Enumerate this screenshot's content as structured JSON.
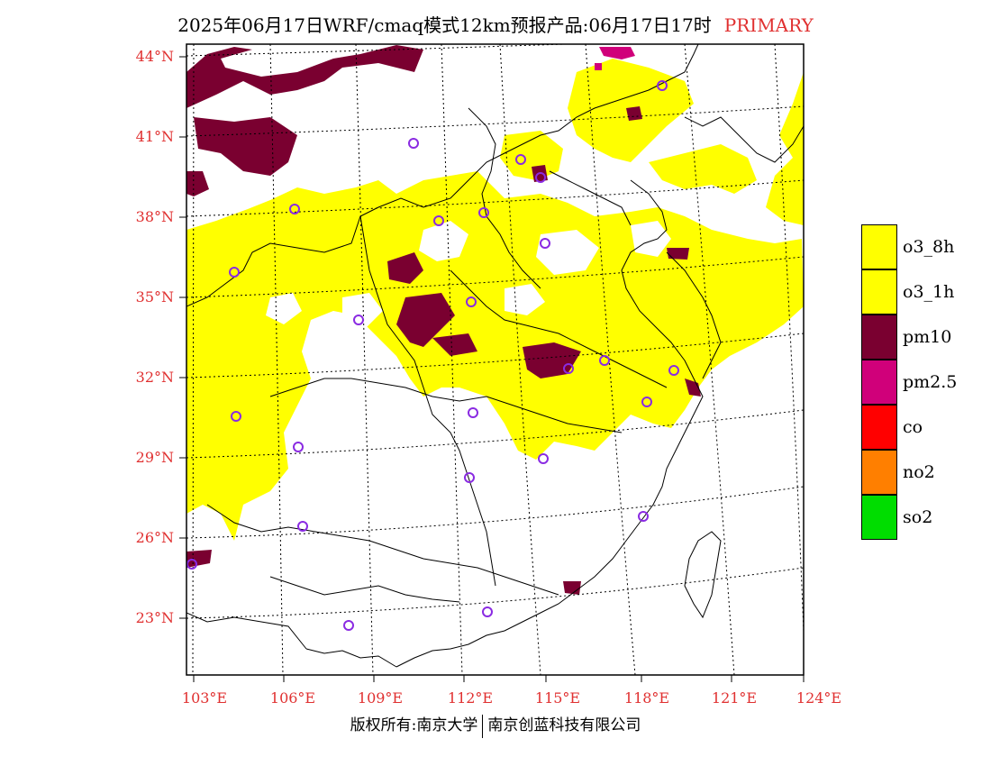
{
  "title": {
    "main": "2025年06月17日WRF/cmaq模式12km预报产品:06月17日17时",
    "tag": "PRIMARY"
  },
  "colors": {
    "o3_8h": "#ffff00",
    "o3_1h": "#ffff00",
    "pm10": "#7a0030",
    "pm2_5": "#d0007a",
    "co": "#ff0000",
    "no2": "#ff7f00",
    "so2": "#00dd00",
    "station": "#8a2be2",
    "axis_label": "#e03030"
  },
  "axes": {
    "lat_labels": [
      "44°N",
      "41°N",
      "38°N",
      "35°N",
      "32°N",
      "29°N",
      "26°N",
      "23°N"
    ],
    "lon_labels": [
      "103°E",
      "106°E",
      "109°E",
      "112°E",
      "115°E",
      "118°E",
      "121°E",
      "124°E"
    ]
  },
  "legend": [
    {
      "label": "o3_8h",
      "color": "#ffff00"
    },
    {
      "label": "o3_1h",
      "color": "#ffff00"
    },
    {
      "label": "pm10",
      "color": "#7a0030"
    },
    {
      "label": "pm2.5",
      "color": "#d0007a"
    },
    {
      "label": "co",
      "color": "#ff0000"
    },
    {
      "label": "no2",
      "color": "#ff7f00"
    },
    {
      "label": "so2",
      "color": "#00dd00"
    }
  ],
  "footer": {
    "left": "版权所有:南京大学",
    "right": "南京创蓝科技有限公司"
  }
}
